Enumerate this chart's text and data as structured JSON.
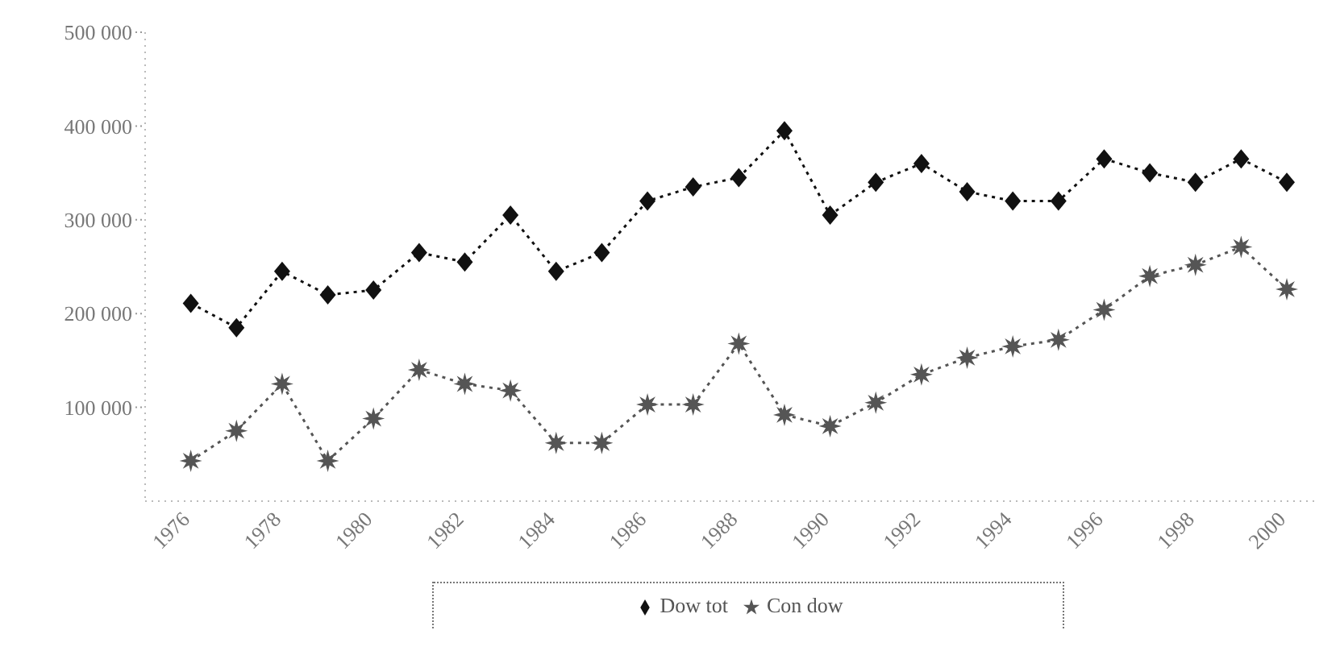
{
  "chart_data": {
    "type": "line",
    "x": [
      1976,
      1977,
      1978,
      1979,
      1980,
      1981,
      1982,
      1983,
      1984,
      1985,
      1986,
      1987,
      1988,
      1989,
      1990,
      1991,
      1992,
      1993,
      1994,
      1995,
      1996,
      1997,
      1998,
      1999,
      2000
    ],
    "series": [
      {
        "name": "Dow tot",
        "color": "#111111",
        "marker": "diamond",
        "values": [
          211000,
          185000,
          245000,
          220000,
          225000,
          265000,
          255000,
          305000,
          245000,
          265000,
          320000,
          335000,
          345000,
          395000,
          305000,
          340000,
          360000,
          330000,
          320000,
          320000,
          365000,
          350000,
          340000,
          365000,
          340000
        ]
      },
      {
        "name": "Con dow",
        "color": "#555555",
        "marker": "star",
        "values": [
          43000,
          75000,
          125000,
          43000,
          88000,
          140000,
          125000,
          118000,
          62000,
          62000,
          103000,
          103000,
          168000,
          92000,
          80000,
          105000,
          135000,
          153000,
          165000,
          172000,
          204000,
          240000,
          252000,
          271000,
          226000
        ]
      }
    ],
    "xlim": [
      1975,
      2000.6
    ],
    "xticks": [
      1976,
      1978,
      1980,
      1982,
      1984,
      1986,
      1988,
      1990,
      1992,
      1994,
      1996,
      1998,
      2000
    ],
    "ylim": [
      0,
      500000
    ],
    "yticks": [
      {
        "value": 100000,
        "label": "100 000"
      },
      {
        "value": 200000,
        "label": "200 000"
      },
      {
        "value": 300000,
        "label": "300 000"
      },
      {
        "value": 400000,
        "label": "400 000"
      },
      {
        "value": 500000,
        "label": "500 000"
      }
    ],
    "grid": false,
    "legend": "bottom",
    "line_style": "dotted"
  }
}
